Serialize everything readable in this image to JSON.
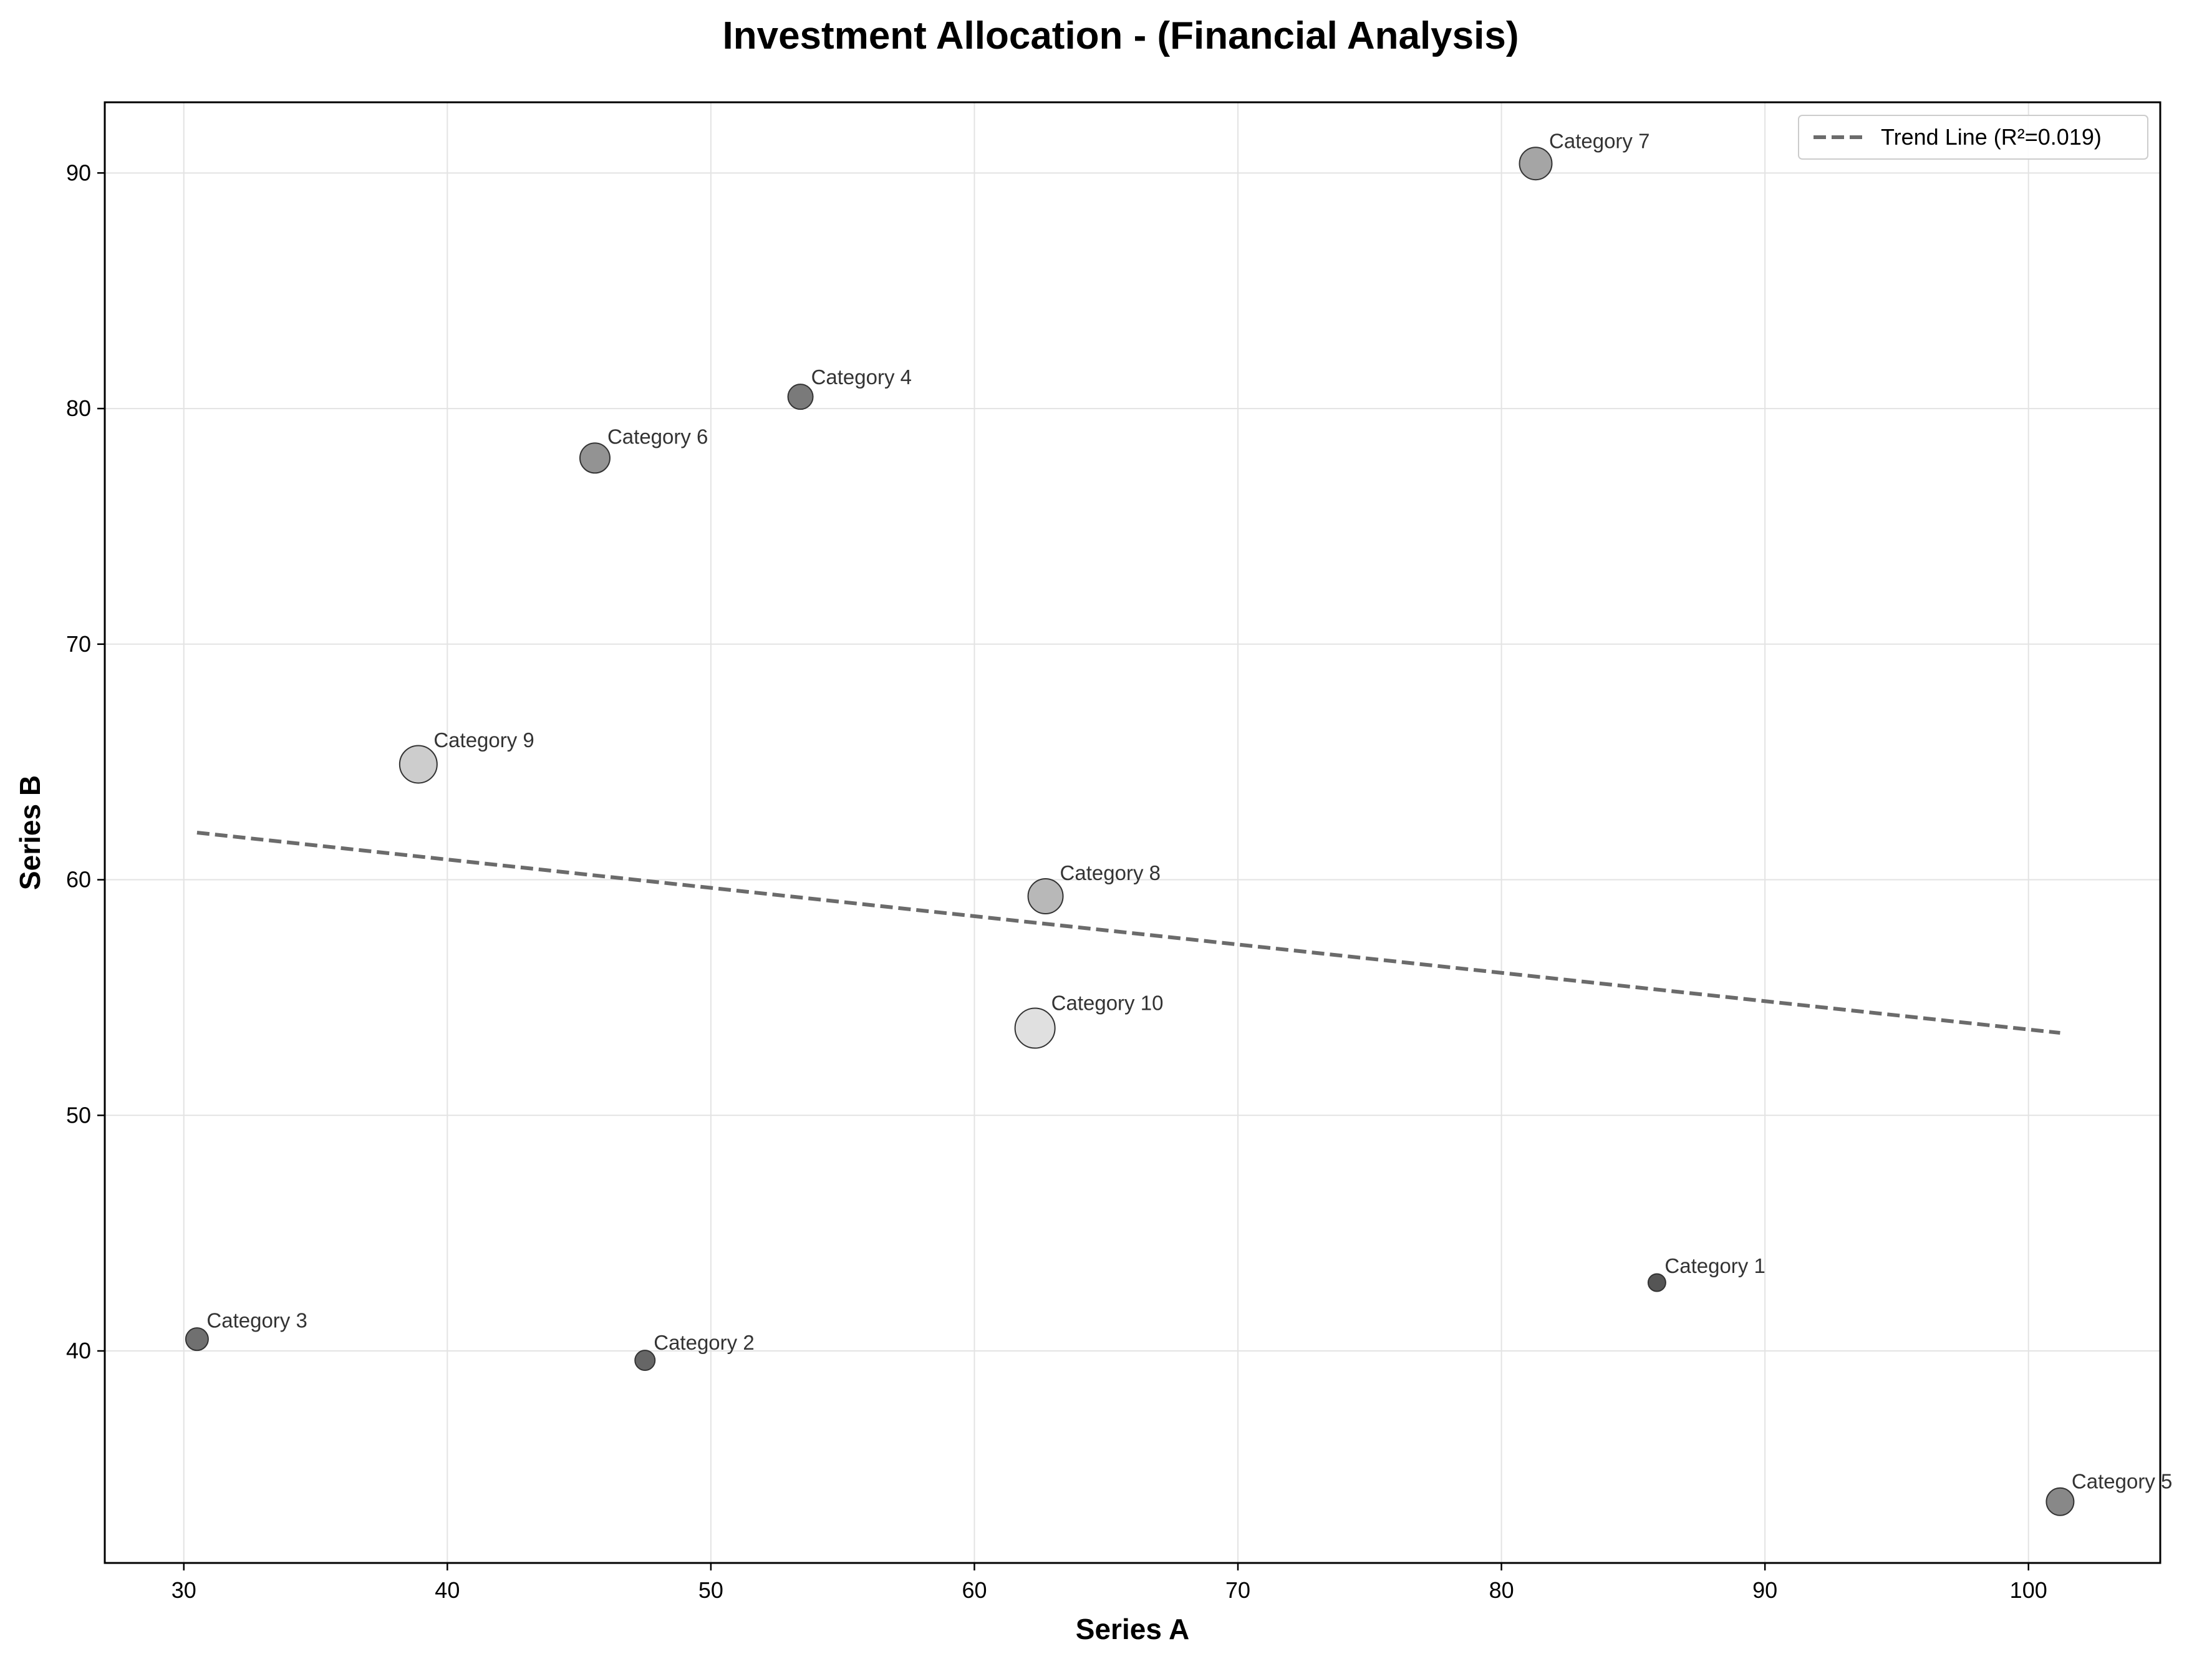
{
  "chart_data": {
    "type": "scatter",
    "title": "Investment Allocation - (Financial Analysis)",
    "xlabel": "Series A",
    "ylabel": "Series B",
    "xlim": [
      27,
      105
    ],
    "ylim": [
      31,
      93
    ],
    "xticks": [
      30,
      40,
      50,
      60,
      70,
      80,
      90,
      100
    ],
    "yticks": [
      40,
      50,
      60,
      70,
      80,
      90
    ],
    "grid": true,
    "legend_position": "top-right",
    "points": [
      {
        "label": "Category 1",
        "x": 85.9,
        "y": 42.9,
        "color": "#555555",
        "size": 14
      },
      {
        "label": "Category 2",
        "x": 47.5,
        "y": 39.6,
        "color": "#666666",
        "size": 16
      },
      {
        "label": "Category 3",
        "x": 30.5,
        "y": 40.5,
        "color": "#707070",
        "size": 18
      },
      {
        "label": "Category 4",
        "x": 53.4,
        "y": 80.5,
        "color": "#7a7a7a",
        "size": 20
      },
      {
        "label": "Category 5",
        "x": 101.2,
        "y": 33.6,
        "color": "#888888",
        "size": 22
      },
      {
        "label": "Category 6",
        "x": 45.6,
        "y": 77.9,
        "color": "#939393",
        "size": 24
      },
      {
        "label": "Category 7",
        "x": 81.3,
        "y": 90.4,
        "color": "#a5a5a5",
        "size": 26
      },
      {
        "label": "Category 8",
        "x": 62.7,
        "y": 59.3,
        "color": "#b8b8b8",
        "size": 28
      },
      {
        "label": "Category 9",
        "x": 38.9,
        "y": 64.9,
        "color": "#cdcdcd",
        "size": 30
      },
      {
        "label": "Category 10",
        "x": 62.3,
        "y": 53.7,
        "color": "#e0e0e0",
        "size": 32
      }
    ],
    "trend_line": {
      "label": "Trend Line (R²=0.019)",
      "x_start": 30.5,
      "y_start": 62.0,
      "x_end": 101.2,
      "y_end": 53.5,
      "color": "#6b6b6b",
      "style": "dashed"
    }
  }
}
